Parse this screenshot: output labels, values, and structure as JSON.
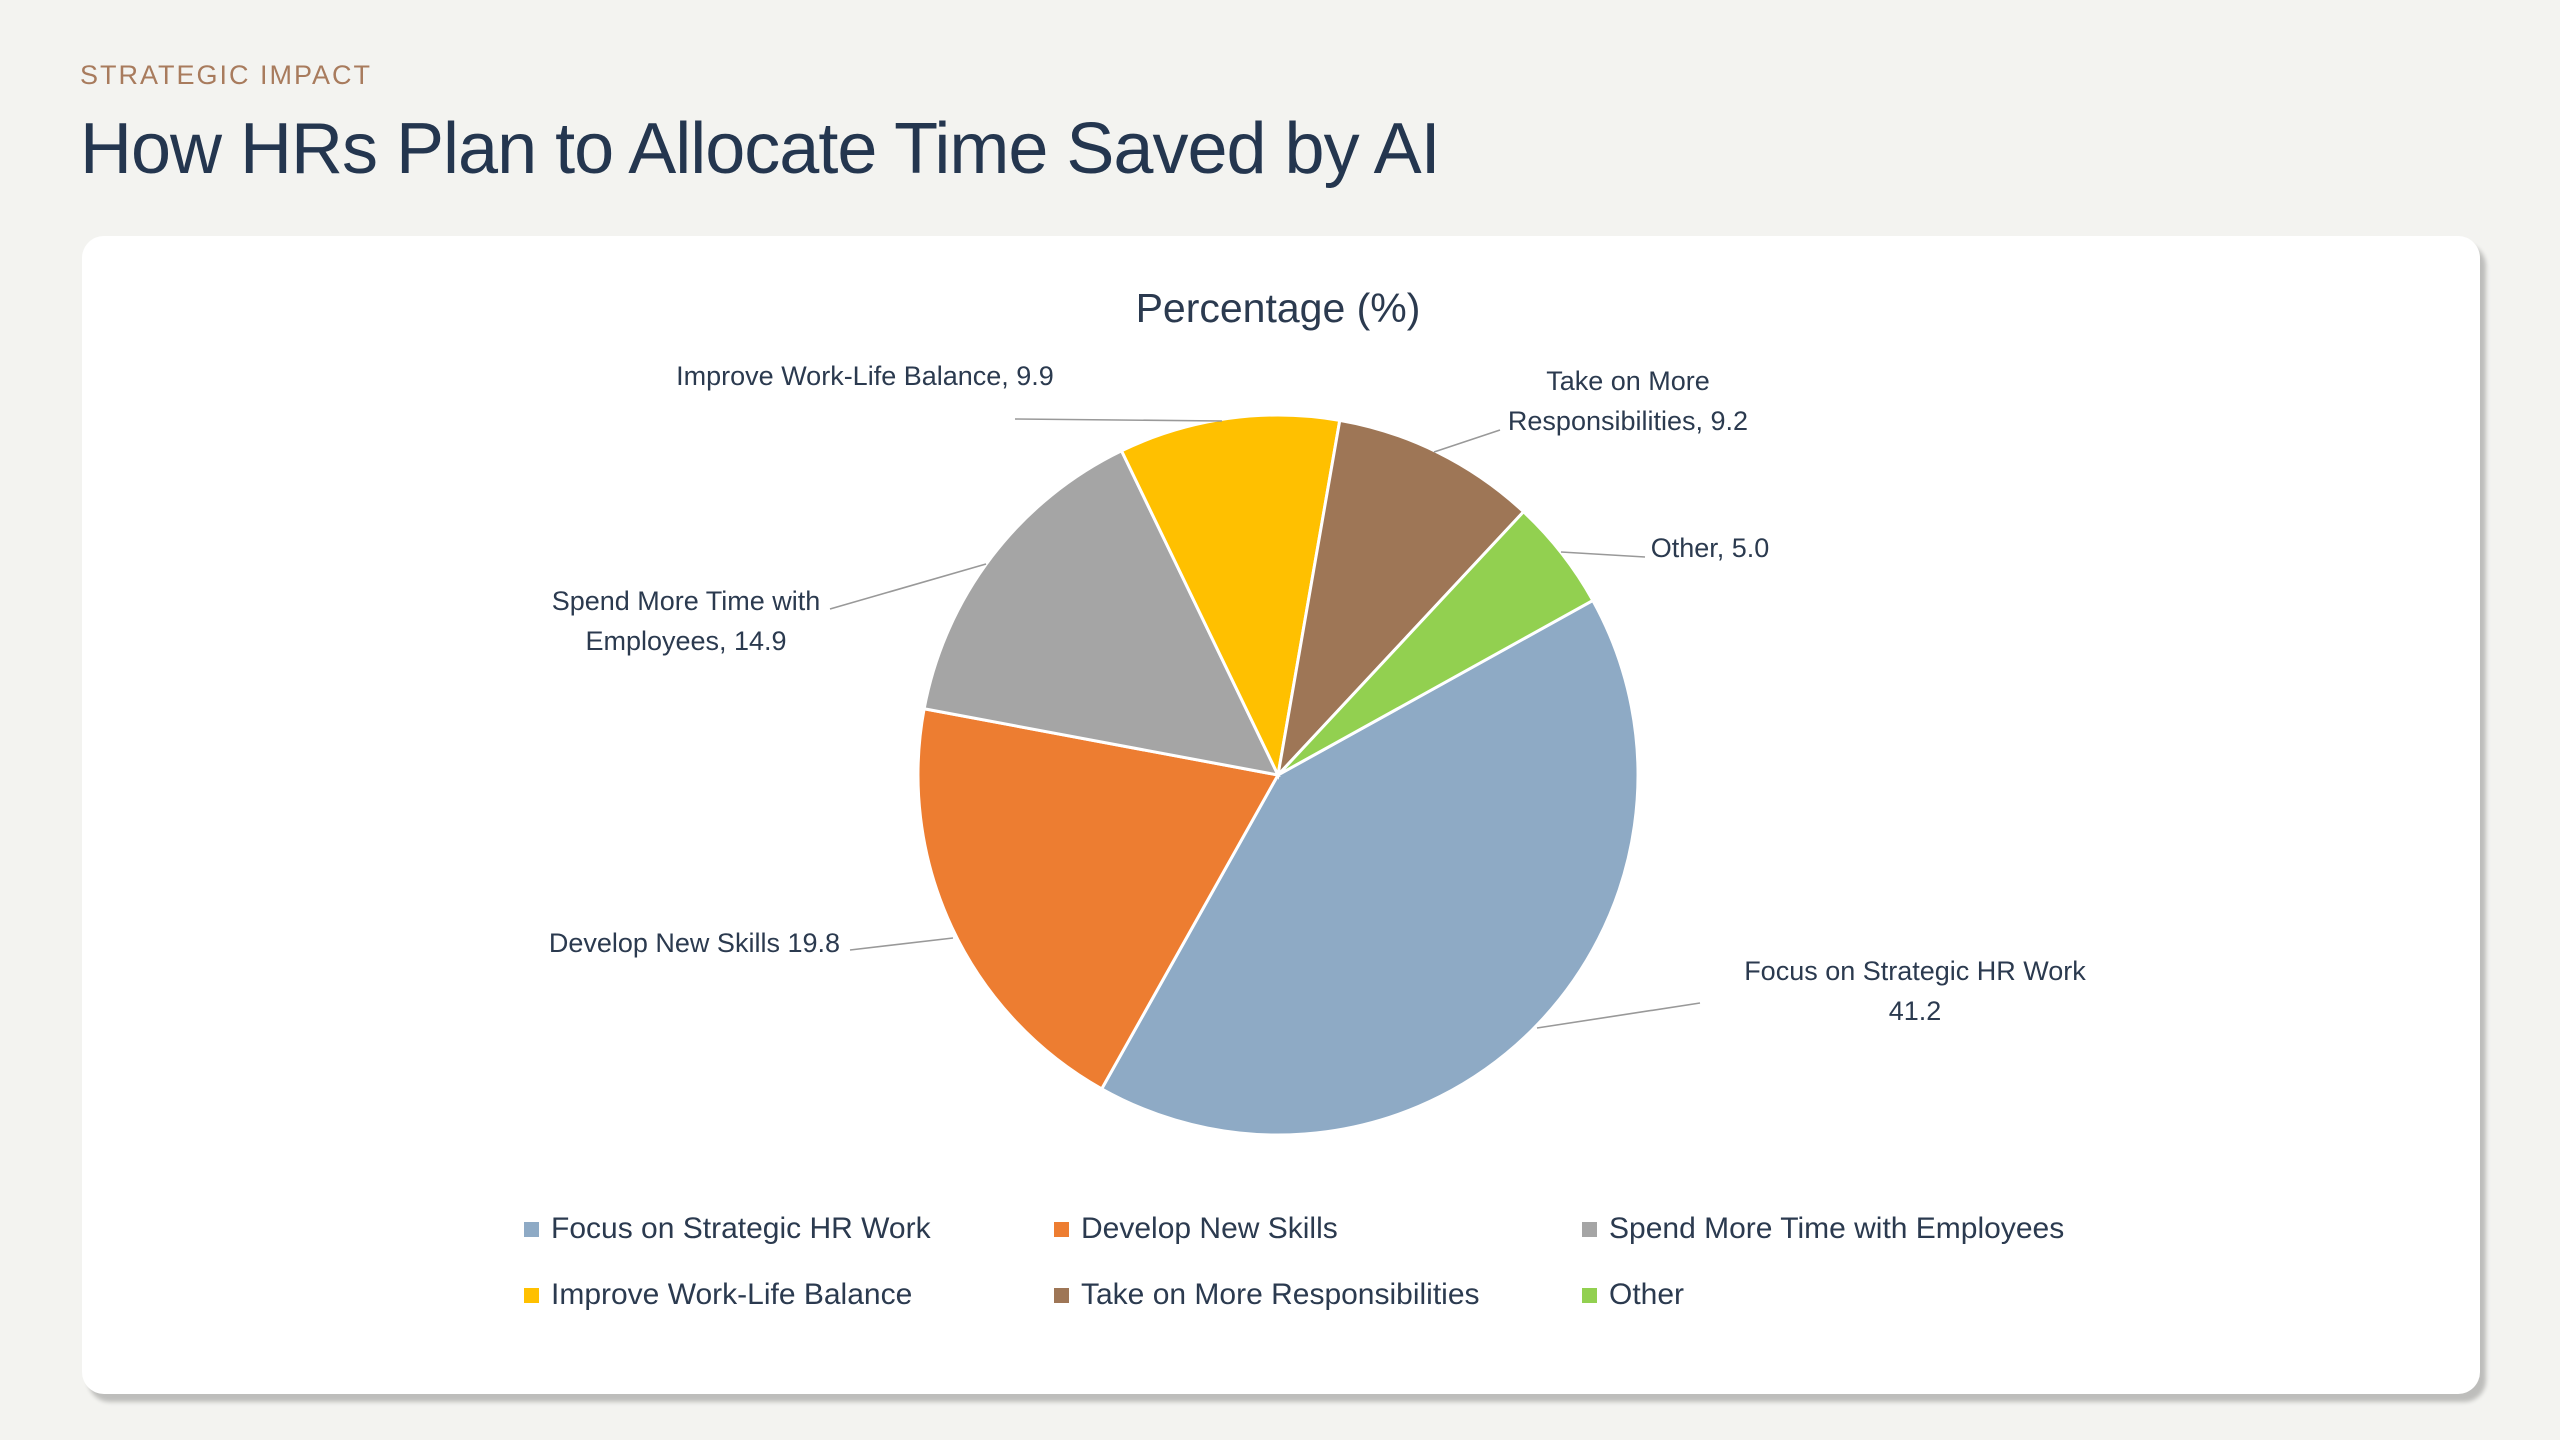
{
  "header": {
    "eyebrow": "STRATEGIC IMPACT",
    "title": "How HRs Plan to Allocate Time Saved by AI"
  },
  "chart_data": {
    "type": "pie",
    "title": "Percentage (%)",
    "legend_position": "bottom",
    "slices": [
      {
        "name": "Focus on Strategic HR Work",
        "value": 41.2,
        "color": "#8eaac5",
        "label_lines": [
          "Focus on Strategic HR Work",
          "41.2"
        ]
      },
      {
        "name": "Develop New Skills",
        "value": 19.8,
        "color": "#ed7d31",
        "label_lines": [
          "Develop New Skills  19.8"
        ]
      },
      {
        "name": "Spend More Time with Employees",
        "value": 14.9,
        "color": "#a5a5a5",
        "label_lines": [
          "Spend More Time with",
          "Employees, 14.9"
        ]
      },
      {
        "name": "Improve Work-Life Balance",
        "value": 9.9,
        "color": "#ffc000",
        "label_lines": [
          "Improve Work-Life Balance, 9.9"
        ]
      },
      {
        "name": "Take on More Responsibilities",
        "value": 9.2,
        "color": "#9e7656",
        "label_lines": [
          "Take on More",
          "Responsibilities, 9.2"
        ]
      },
      {
        "name": "Other",
        "value": 5.0,
        "color": "#92d050",
        "label_lines": [
          "Other, 5.0"
        ]
      }
    ]
  }
}
